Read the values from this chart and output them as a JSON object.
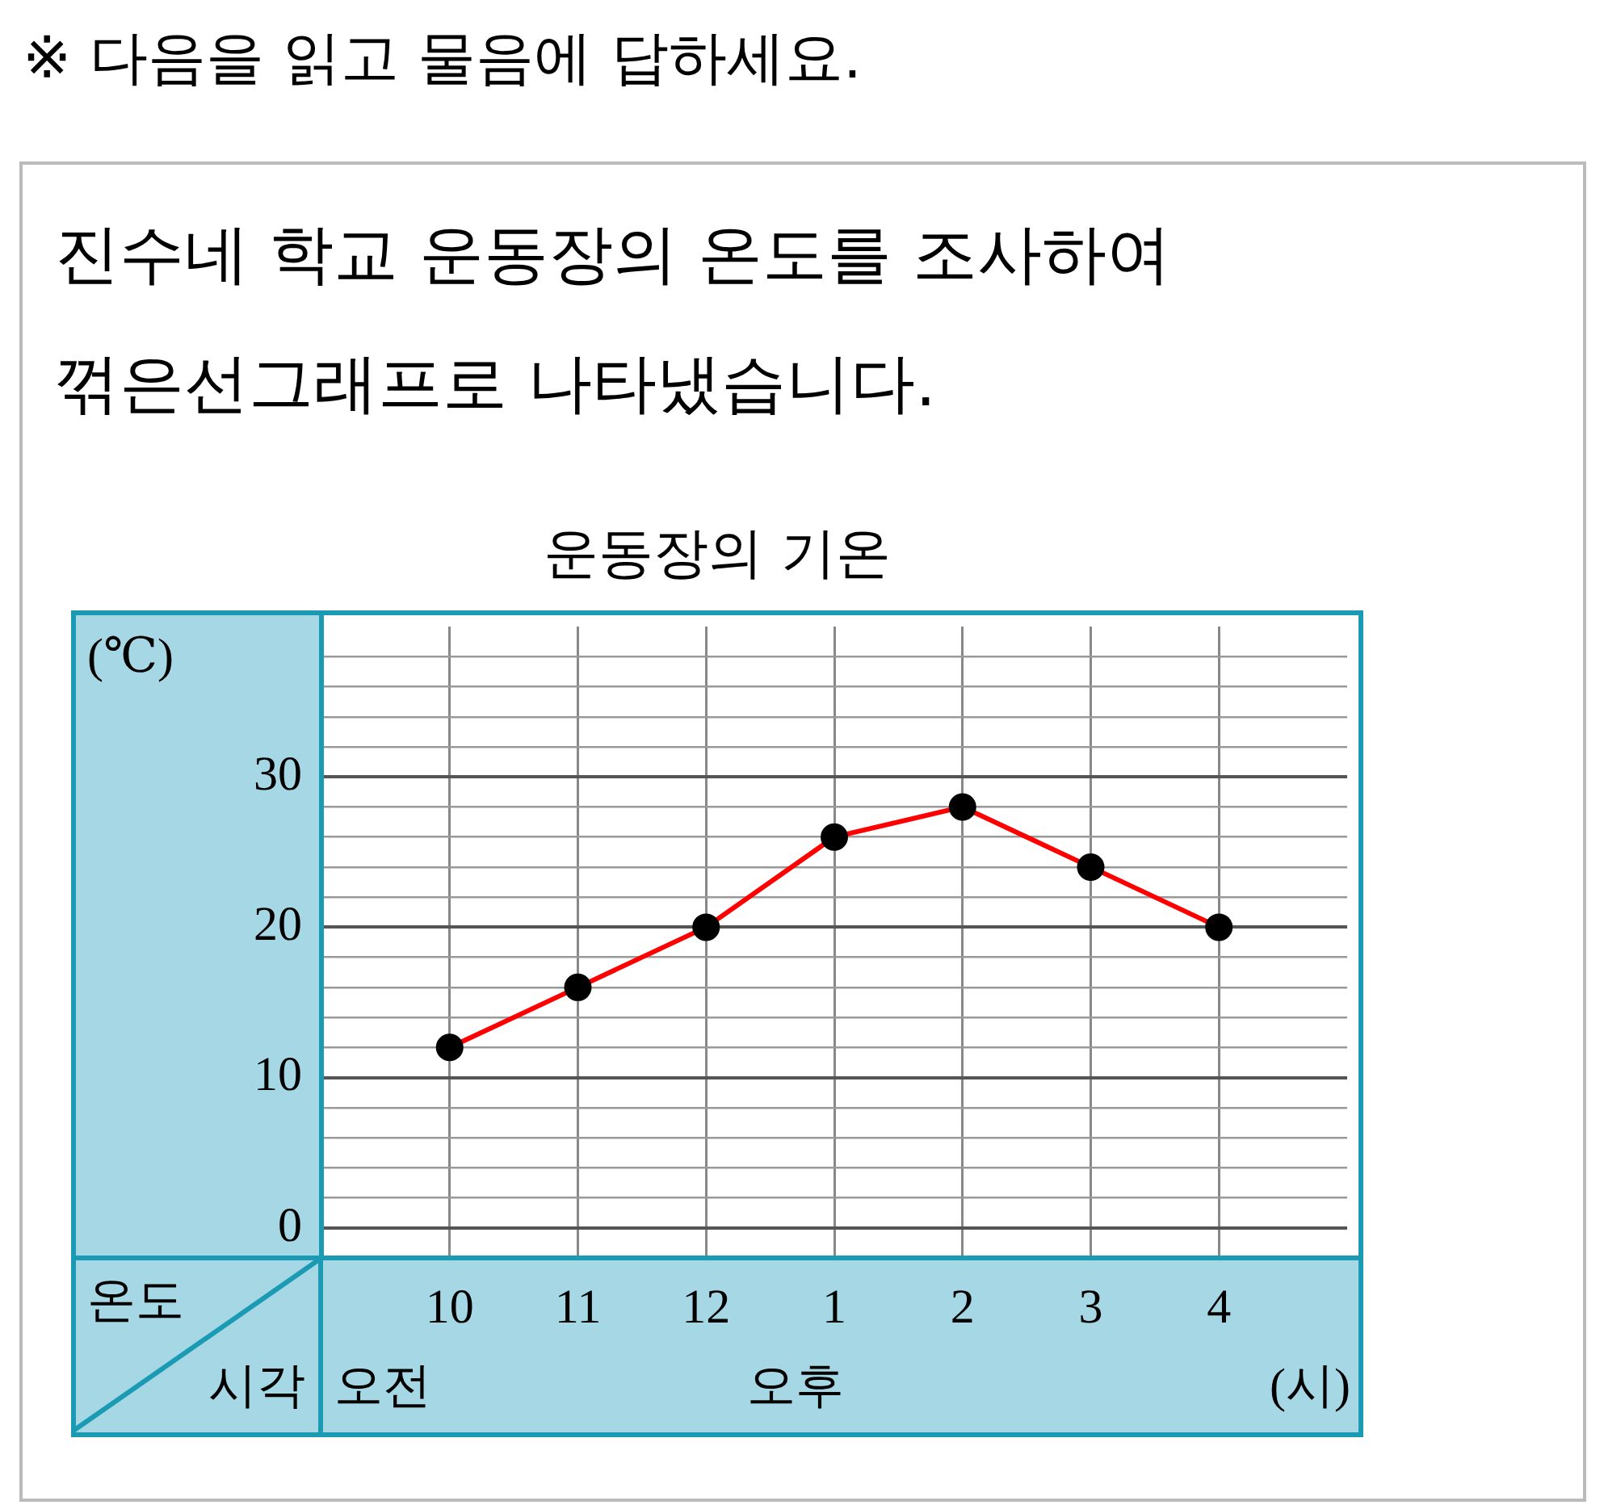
{
  "chart_data": {
    "type": "line",
    "title": "운동장의 기온",
    "subtitle": "진수네 학교 운동장의 온도를 조사하여 꺾은선그래프로 나타냈습니다.",
    "annotations": [
      "※ 다음을 읽고 물음에 답하세요.",
      "온도",
      "시각",
      "오전",
      "오후"
    ],
    "xlabel": "(시)",
    "ylabel": "(℃)",
    "categories": [
      "10",
      "11",
      "12",
      "1",
      "2",
      "3",
      "4"
    ],
    "series": [
      {
        "color": "#ff0000",
        "values": [
          12,
          16,
          20,
          26,
          28,
          24,
          20
        ]
      }
    ],
    "ylim": [
      -2,
      40
    ],
    "yticks": [
      0,
      {
        "value": 2,
        "label": null
      },
      {
        "value": 4,
        "label": null
      },
      {
        "value": 6,
        "label": null
      },
      {
        "value": 8,
        "label": null
      },
      10,
      {
        "value": 12,
        "label": null
      },
      {
        "value": 14,
        "label": null
      },
      {
        "value": 16,
        "label": null
      },
      {
        "value": 18,
        "label": null
      },
      20,
      {
        "value": 22,
        "label": null
      },
      {
        "value": 24,
        "label": null
      },
      {
        "value": 26,
        "label": null
      },
      {
        "value": 28,
        "label": null
      },
      30,
      {
        "value": 32,
        "label": null
      },
      {
        "value": 34,
        "label": null
      },
      {
        "value": 36,
        "label": null
      },
      {
        "value": 38,
        "label": null
      }
    ],
    "grid": true,
    "marker": "circle",
    "line_style": "solid"
  }
}
